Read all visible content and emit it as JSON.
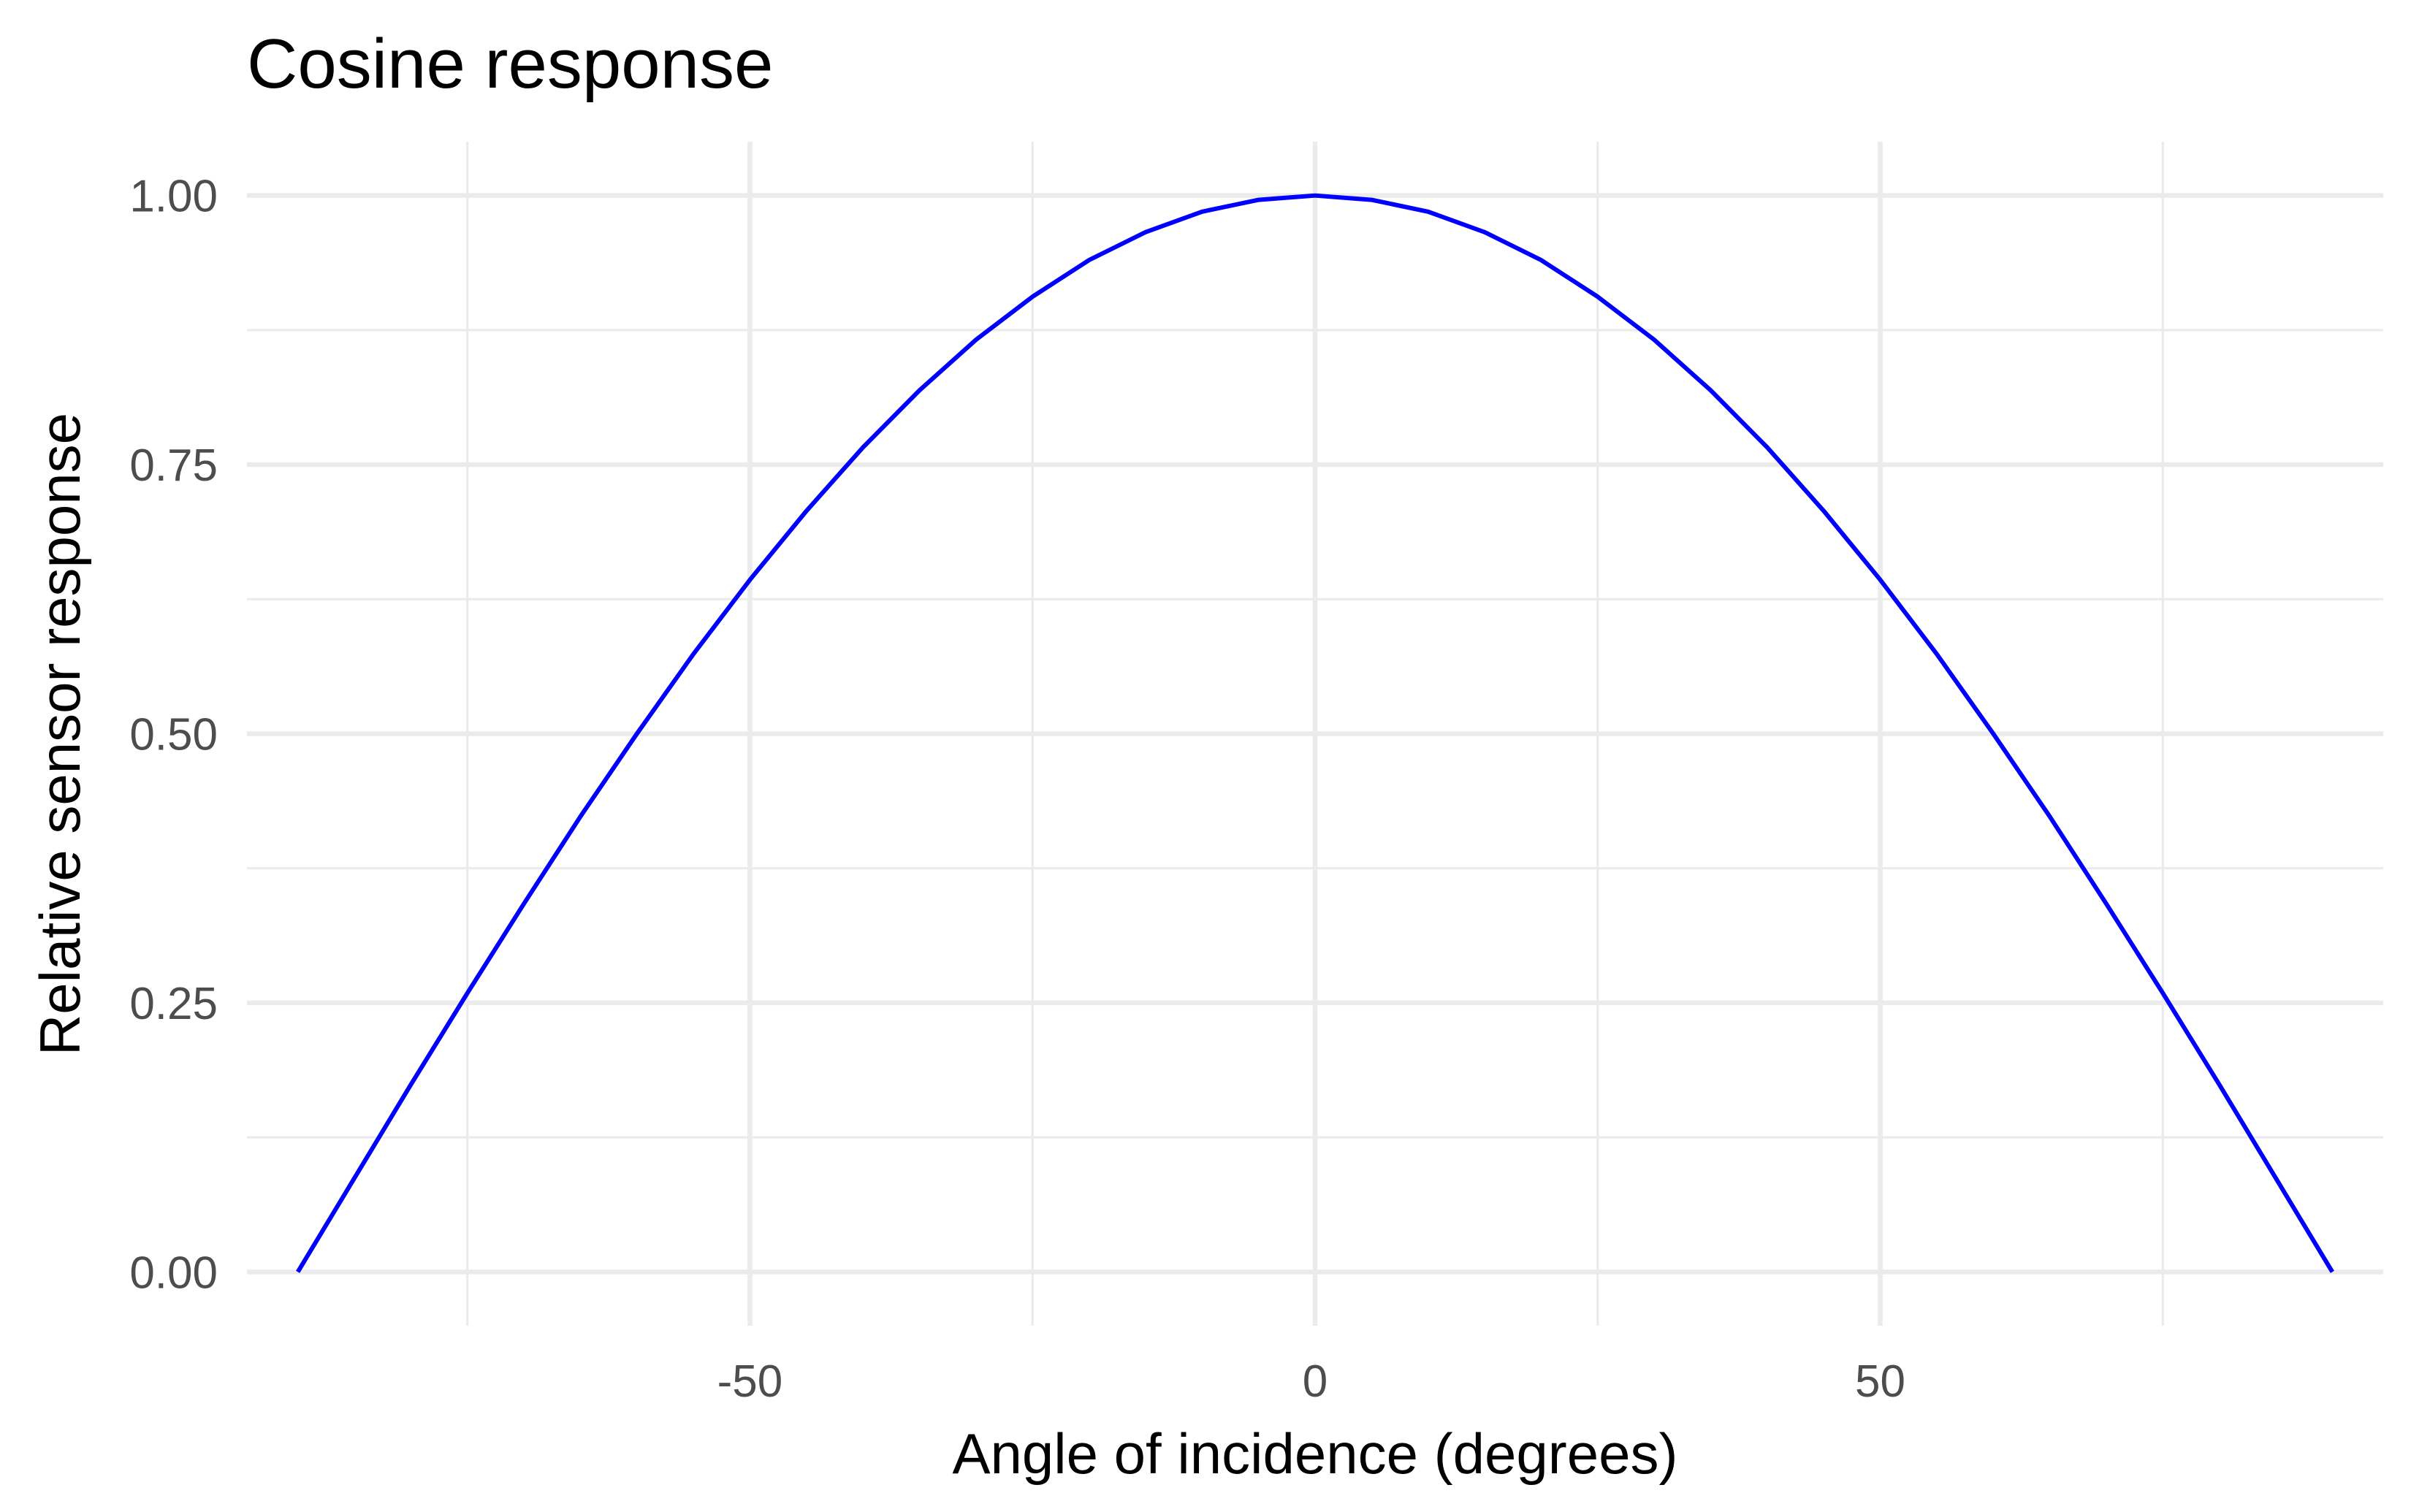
{
  "chart_data": {
    "type": "line",
    "title": "Cosine response",
    "xlabel": "Angle of incidence (degrees)",
    "ylabel": "Relative sensor response",
    "xlim": [
      -94.5,
      94.5
    ],
    "ylim": [
      -0.05,
      1.05
    ],
    "x_ticks": [
      -50,
      0,
      50
    ],
    "x_tick_labels": [
      "-50",
      "0",
      "50"
    ],
    "x_minor_ticks": [
      -75,
      -25,
      25,
      75
    ],
    "y_ticks": [
      0,
      0.25,
      0.5,
      0.75,
      1
    ],
    "y_tick_labels": [
      "0.00",
      "0.25",
      "0.50",
      "0.75",
      "1.00"
    ],
    "y_minor_ticks": [
      0.125,
      0.375,
      0.625,
      0.875
    ],
    "grid": true,
    "legend": "none",
    "series": [
      {
        "color": "#0000ff",
        "x": [
          -90,
          -85,
          -80,
          -75,
          -70,
          -65,
          -60,
          -55,
          -50,
          -45,
          -40,
          -35,
          -30,
          -25,
          -20,
          -15,
          -10,
          -5,
          0,
          5,
          10,
          15,
          20,
          25,
          30,
          35,
          40,
          45,
          50,
          55,
          60,
          65,
          70,
          75,
          80,
          85,
          90
        ],
        "y": [
          0.0,
          0.087,
          0.174,
          0.259,
          0.342,
          0.423,
          0.5,
          0.574,
          0.643,
          0.707,
          0.766,
          0.819,
          0.866,
          0.906,
          0.94,
          0.966,
          0.985,
          0.996,
          1.0,
          0.996,
          0.985,
          0.966,
          0.94,
          0.906,
          0.866,
          0.819,
          0.766,
          0.707,
          0.643,
          0.574,
          0.5,
          0.423,
          0.342,
          0.259,
          0.174,
          0.087,
          0.0
        ]
      }
    ]
  }
}
